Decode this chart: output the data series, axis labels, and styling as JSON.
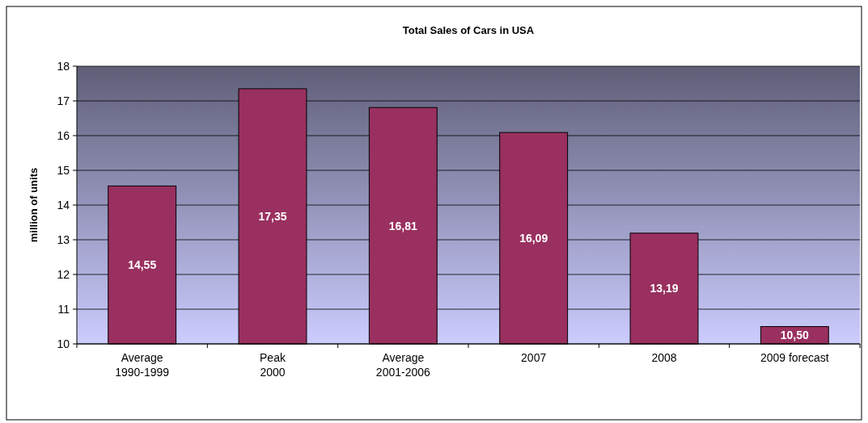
{
  "chart_data": {
    "type": "bar",
    "title": "Total Sales of Cars in USA",
    "ylabel": "million of units",
    "categories": [
      "Average\n1990-1999",
      "Peak\n2000",
      "Average\n2001-2006",
      "2007",
      "2008",
      "2009 forecast"
    ],
    "values": [
      14.55,
      17.35,
      16.81,
      16.09,
      13.19,
      10.5
    ],
    "value_labels": [
      "14,55",
      "17,35",
      "16,81",
      "16,09",
      "13,19",
      "10,50"
    ],
    "color": "#99305f",
    "ylim": [
      10,
      18
    ],
    "yticks": [
      10,
      11,
      12,
      13,
      14,
      15,
      16,
      17,
      18
    ],
    "grid": "y"
  }
}
